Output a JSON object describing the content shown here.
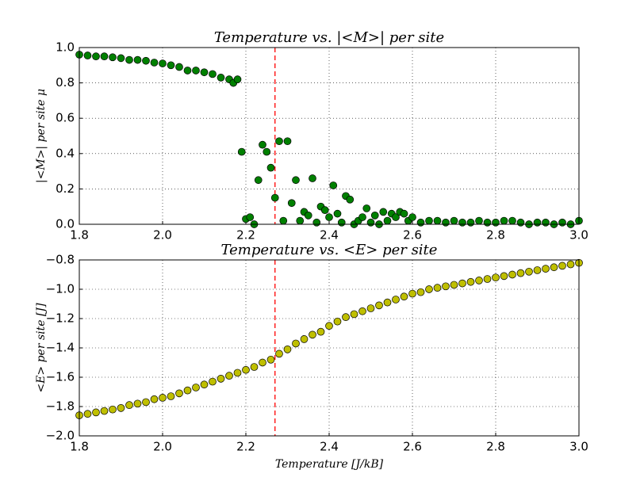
{
  "chart_data": [
    {
      "type": "scatter",
      "title": "Temperature vs. |<M>| per site",
      "ylabel": "|<M>| per site μ",
      "color": "#008000",
      "grid": true,
      "vline": 2.27,
      "vline_color": "#ff0000",
      "xlim": [
        1.8,
        3.0
      ],
      "xticks": [
        1.8,
        {
          "value": 2.0,
          "label": "2.0"
        },
        2.2,
        2.4,
        2.6,
        2.8,
        {
          "value": 3.0,
          "label": "3.0"
        }
      ],
      "ylim": [
        0.0,
        1.0
      ],
      "yticks": [
        {
          "value": 0.0,
          "label": "0.0"
        },
        0.2,
        0.4,
        0.6,
        0.8,
        {
          "value": 1.0,
          "label": "1.0"
        }
      ],
      "x": [
        1.8,
        1.82,
        1.84,
        1.86,
        1.88,
        1.9,
        1.92,
        1.94,
        1.96,
        1.98,
        2.0,
        2.02,
        2.04,
        2.06,
        2.08,
        2.1,
        2.12,
        2.14,
        2.16,
        2.17,
        2.18,
        2.19,
        2.2,
        2.21,
        2.22,
        2.23,
        2.24,
        2.25,
        2.26,
        2.27,
        2.28,
        2.29,
        2.3,
        2.31,
        2.32,
        2.33,
        2.34,
        2.35,
        2.36,
        2.37,
        2.38,
        2.39,
        2.4,
        2.41,
        2.42,
        2.43,
        2.44,
        2.45,
        2.46,
        2.47,
        2.48,
        2.49,
        2.5,
        2.51,
        2.52,
        2.53,
        2.54,
        2.55,
        2.56,
        2.57,
        2.58,
        2.59,
        2.6,
        2.62,
        2.64,
        2.66,
        2.68,
        2.7,
        2.72,
        2.74,
        2.76,
        2.78,
        2.8,
        2.82,
        2.84,
        2.86,
        2.88,
        2.9,
        2.92,
        2.94,
        2.96,
        2.98,
        3.0
      ],
      "values": [
        0.96,
        0.955,
        0.95,
        0.95,
        0.945,
        0.94,
        0.93,
        0.93,
        0.925,
        0.915,
        0.91,
        0.9,
        0.89,
        0.87,
        0.87,
        0.86,
        0.85,
        0.83,
        0.82,
        0.8,
        0.82,
        0.41,
        0.03,
        0.04,
        0.0,
        0.25,
        0.45,
        0.41,
        0.32,
        0.15,
        0.47,
        0.02,
        0.47,
        0.12,
        0.25,
        0.02,
        0.07,
        0.05,
        0.26,
        0.01,
        0.1,
        0.08,
        0.04,
        0.22,
        0.06,
        0.01,
        0.16,
        0.14,
        0.0,
        0.02,
        0.04,
        0.09,
        0.01,
        0.05,
        0.0,
        0.07,
        0.02,
        0.06,
        0.04,
        0.07,
        0.06,
        0.02,
        0.04,
        0.01,
        0.02,
        0.02,
        0.01,
        0.02,
        0.01,
        0.01,
        0.02,
        0.01,
        0.01,
        0.02,
        0.02,
        0.01,
        0.0,
        0.01,
        0.01,
        0.0,
        0.01,
        0.0,
        0.02
      ]
    },
    {
      "type": "scatter",
      "title": "Temperature vs. <E> per site",
      "ylabel": "<E> per site [J]",
      "xlabel": "Temperature [J/kB]",
      "color": "#bfbf00",
      "grid": true,
      "vline": 2.27,
      "vline_color": "#ff0000",
      "xlim": [
        1.8,
        3.0
      ],
      "xticks": [
        1.8,
        {
          "value": 2.0,
          "label": "2.0"
        },
        2.2,
        2.4,
        2.6,
        2.8,
        {
          "value": 3.0,
          "label": "3.0"
        }
      ],
      "ylim": [
        -2.0,
        -0.8
      ],
      "yticks": [
        {
          "value": -2.0,
          "label": "−2.0"
        },
        {
          "value": -1.8,
          "label": "−1.8"
        },
        {
          "value": -1.6,
          "label": "−1.6"
        },
        {
          "value": -1.4,
          "label": "−1.4"
        },
        {
          "value": -1.2,
          "label": "−1.2"
        },
        {
          "value": -1.0,
          "label": "−1.0"
        },
        {
          "value": -0.8,
          "label": "−0.8"
        }
      ],
      "x": [
        1.8,
        1.82,
        1.84,
        1.86,
        1.88,
        1.9,
        1.92,
        1.94,
        1.96,
        1.98,
        2.0,
        2.02,
        2.04,
        2.06,
        2.08,
        2.1,
        2.12,
        2.14,
        2.16,
        2.18,
        2.2,
        2.22,
        2.24,
        2.26,
        2.28,
        2.3,
        2.32,
        2.34,
        2.36,
        2.38,
        2.4,
        2.42,
        2.44,
        2.46,
        2.48,
        2.5,
        2.52,
        2.54,
        2.56,
        2.58,
        2.6,
        2.62,
        2.64,
        2.66,
        2.68,
        2.7,
        2.72,
        2.74,
        2.76,
        2.78,
        2.8,
        2.82,
        2.84,
        2.86,
        2.88,
        2.9,
        2.92,
        2.94,
        2.96,
        2.98,
        3.0
      ],
      "values": [
        -1.86,
        -1.85,
        -1.84,
        -1.83,
        -1.82,
        -1.81,
        -1.79,
        -1.78,
        -1.77,
        -1.75,
        -1.74,
        -1.73,
        -1.71,
        -1.69,
        -1.67,
        -1.65,
        -1.63,
        -1.61,
        -1.59,
        -1.57,
        -1.55,
        -1.53,
        -1.5,
        -1.48,
        -1.44,
        -1.41,
        -1.37,
        -1.34,
        -1.31,
        -1.29,
        -1.25,
        -1.22,
        -1.19,
        -1.17,
        -1.15,
        -1.13,
        -1.11,
        -1.09,
        -1.07,
        -1.05,
        -1.03,
        -1.02,
        -1.0,
        -0.99,
        -0.98,
        -0.97,
        -0.96,
        -0.95,
        -0.94,
        -0.93,
        -0.92,
        -0.91,
        -0.9,
        -0.89,
        -0.88,
        -0.87,
        -0.86,
        -0.85,
        -0.84,
        -0.83,
        -0.82
      ]
    }
  ]
}
